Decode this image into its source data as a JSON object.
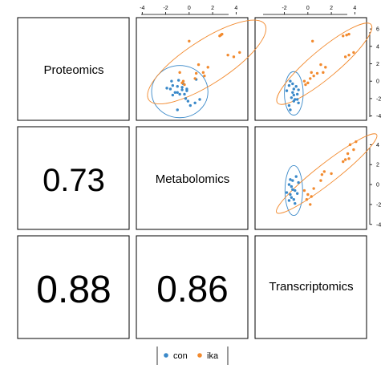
{
  "chart_data": {
    "type": "scatter",
    "variables": [
      "Proteomics",
      "Metabolomics",
      "Transcriptomics"
    ],
    "correlations": [
      {
        "row": "Metabolomics",
        "col": "Proteomics",
        "label": "0.73"
      },
      {
        "row": "Transcriptomics",
        "col": "Proteomics",
        "label": "0.88"
      },
      {
        "row": "Transcriptomics",
        "col": "Metabolomics",
        "label": "0.86"
      }
    ],
    "axes": {
      "top_ticks": [
        "-4",
        "-2",
        "0",
        "2",
        "4"
      ],
      "top_ticks_col3": [
        "-2",
        "0",
        "2",
        "4"
      ],
      "right_ticks_row1": [
        "6",
        "4",
        "2",
        "0",
        "-2",
        "-4"
      ],
      "right_ticks_row2": [
        "4",
        "2",
        "0",
        "-2",
        "-4"
      ],
      "x_range": [
        -4.5,
        5.0
      ],
      "y_range_row1": [
        -4.5,
        7.3
      ],
      "y_range_row2": [
        -4.5,
        5.8
      ]
    },
    "groups": [
      {
        "name": "con",
        "color": "#3a89c9"
      },
      {
        "name": "ika",
        "color": "#f28a2e"
      }
    ],
    "panels": [
      {
        "id": "metab-vs-prot",
        "x_var": "Metabolomics",
        "y_var": "Proteomics",
        "series": [
          {
            "name": "con",
            "points": [
              [
                -1.9,
                -0.8
              ],
              [
                -1.6,
                -0.9
              ],
              [
                -1.5,
                0.0
              ],
              [
                -1.4,
                -0.5
              ],
              [
                -1.2,
                -1.3
              ],
              [
                -1.0,
                -0.6
              ],
              [
                -1.0,
                -1.3
              ],
              [
                -0.9,
                0.1
              ],
              [
                -0.8,
                -1.5
              ],
              [
                -0.6,
                -1.0
              ],
              [
                -0.5,
                -0.3
              ],
              [
                -0.4,
                -1.5
              ],
              [
                -0.3,
                -2.0
              ],
              [
                -0.2,
                -1.1
              ],
              [
                -0.1,
                -2.3
              ],
              [
                0.1,
                -2.8
              ],
              [
                0.5,
                -2.5
              ],
              [
                0.9,
                -2.1
              ],
              [
                -0.2,
                -0.9
              ],
              [
                -1.4,
                -1.6
              ],
              [
                0.6,
                0.2
              ],
              [
                -0.6,
                -0.7
              ],
              [
                -1.0,
                -3.3
              ]
            ]
          },
          {
            "name": "ika",
            "points": [
              [
                -0.8,
                1.0
              ],
              [
                -0.6,
                -0.2
              ],
              [
                -0.5,
                0.0
              ],
              [
                -0.4,
                -0.4
              ],
              [
                0.5,
                0.3
              ],
              [
                0.6,
                0.9
              ],
              [
                0.8,
                1.9
              ],
              [
                1.2,
                1.0
              ],
              [
                1.6,
                1.6
              ],
              [
                3.3,
                3.0
              ],
              [
                3.8,
                2.8
              ],
              [
                4.3,
                3.3
              ],
              [
                2.7,
                5.3
              ],
              [
                2.6,
                5.2
              ],
              [
                2.8,
                5.4
              ],
              [
                0.0,
                4.6
              ],
              [
                1.3,
                0.6
              ]
            ]
          }
        ],
        "ellipses": [
          {
            "group": "con",
            "cx": -0.8,
            "cy": -1.2,
            "rx": 2.4,
            "ry": 3.0,
            "rot": 0
          },
          {
            "group": "ika",
            "cx": 1.5,
            "cy": 2.2,
            "rx": 5.9,
            "ry": 2.5,
            "rot": -33
          }
        ]
      },
      {
        "id": "trans-vs-prot",
        "x_var": "Transcriptomics",
        "y_var": "Proteomics",
        "series": [
          {
            "name": "con",
            "points": [
              [
                -1.8,
                -1.1
              ],
              [
                -1.6,
                -0.5
              ],
              [
                -1.5,
                0.0
              ],
              [
                -1.4,
                -1.9
              ],
              [
                -1.3,
                -1.3
              ],
              [
                -1.2,
                -0.9
              ],
              [
                -1.2,
                -2.3
              ],
              [
                -1.1,
                -2.1
              ],
              [
                -1.0,
                -0.6
              ],
              [
                -0.9,
                -1.5
              ],
              [
                -0.8,
                -1.0
              ],
              [
                -0.8,
                -2.5
              ],
              [
                -1.6,
                -2.8
              ],
              [
                -1.5,
                -3.3
              ],
              [
                -1.2,
                -1.6
              ],
              [
                -0.9,
                -2.1
              ],
              [
                -1.3,
                -0.3
              ]
            ]
          },
          {
            "name": "ika",
            "points": [
              [
                -0.3,
                0.0
              ],
              [
                -0.2,
                -0.4
              ],
              [
                0.0,
                -0.2
              ],
              [
                0.2,
                0.3
              ],
              [
                0.3,
                1.0
              ],
              [
                0.4,
                4.6
              ],
              [
                0.5,
                0.6
              ],
              [
                1.1,
                1.9
              ],
              [
                1.3,
                1.0
              ],
              [
                1.5,
                1.6
              ],
              [
                3.2,
                2.8
              ],
              [
                3.5,
                3.0
              ],
              [
                3.9,
                3.3
              ],
              [
                3.0,
                5.2
              ],
              [
                3.3,
                5.3
              ],
              [
                3.5,
                5.4
              ],
              [
                0.8,
                0.9
              ]
            ]
          }
        ],
        "ellipses": [
          {
            "group": "con",
            "cx": -1.2,
            "cy": -1.4,
            "rx": 0.8,
            "ry": 2.5,
            "rot": 0
          },
          {
            "group": "ika",
            "cx": 1.4,
            "cy": 2.0,
            "rx": 5.2,
            "ry": 1.6,
            "rot": -40
          }
        ]
      },
      {
        "id": "trans-vs-metab",
        "x_var": "Transcriptomics",
        "y_var": "Metabolomics",
        "series": [
          {
            "name": "con",
            "points": [
              [
                -1.8,
                -0.8
              ],
              [
                -1.6,
                0.0
              ],
              [
                -1.5,
                -1.0
              ],
              [
                -1.4,
                -1.3
              ],
              [
                -1.3,
                -0.5
              ],
              [
                -1.3,
                0.4
              ],
              [
                -1.2,
                -1.5
              ],
              [
                -1.1,
                -1.9
              ],
              [
                -1.0,
                0.8
              ],
              [
                -0.9,
                -0.9
              ],
              [
                -0.8,
                0.2
              ],
              [
                -1.6,
                -1.6
              ],
              [
                -1.4,
                -0.2
              ],
              [
                -1.1,
                -0.6
              ],
              [
                -1.5,
                0.5
              ]
            ]
          },
          {
            "name": "ika",
            "points": [
              [
                -0.3,
                -0.6
              ],
              [
                -0.1,
                -1.5
              ],
              [
                0.0,
                -1.0
              ],
              [
                0.2,
                -2.0
              ],
              [
                0.3,
                -1.2
              ],
              [
                0.5,
                -0.4
              ],
              [
                1.1,
                0.4
              ],
              [
                1.2,
                1.0
              ],
              [
                1.4,
                1.3
              ],
              [
                2.0,
                1.1
              ],
              [
                3.0,
                2.3
              ],
              [
                3.2,
                2.5
              ],
              [
                3.5,
                2.6
              ],
              [
                3.4,
                3.1
              ],
              [
                3.9,
                3.5
              ],
              [
                3.6,
                4.0
              ],
              [
                4.1,
                4.3
              ]
            ]
          }
        ],
        "ellipses": [
          {
            "group": "con",
            "cx": -1.2,
            "cy": -0.6,
            "rx": 0.75,
            "ry": 2.5,
            "rot": 0
          },
          {
            "group": "ika",
            "cx": 1.6,
            "cy": 1.1,
            "rx": 5.4,
            "ry": 1.0,
            "rot": -38
          }
        ]
      }
    ],
    "legend": {
      "entries": [
        "con",
        "ika"
      ],
      "placement": "bottom"
    }
  }
}
